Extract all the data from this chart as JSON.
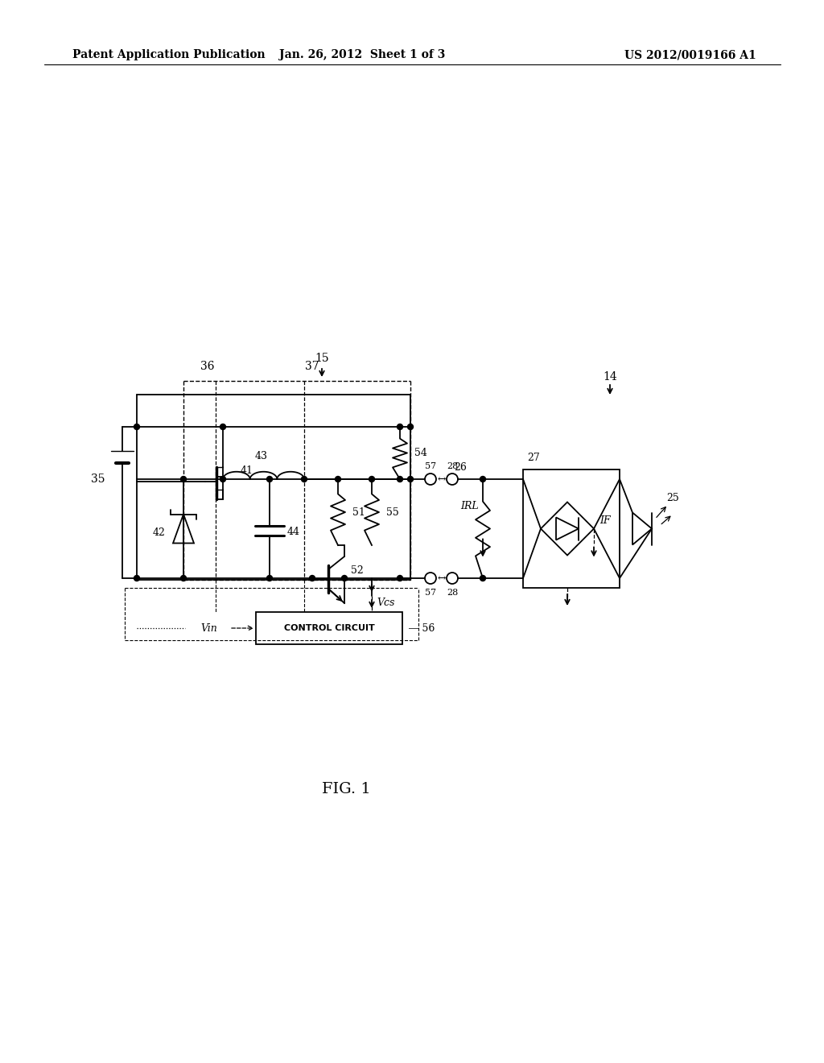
{
  "bg_color": "#ffffff",
  "header_left": "Patent Application Publication",
  "header_mid": "Jan. 26, 2012  Sheet 1 of 3",
  "header_right": "US 2012/0019166 A1",
  "caption": "FIG. 1"
}
